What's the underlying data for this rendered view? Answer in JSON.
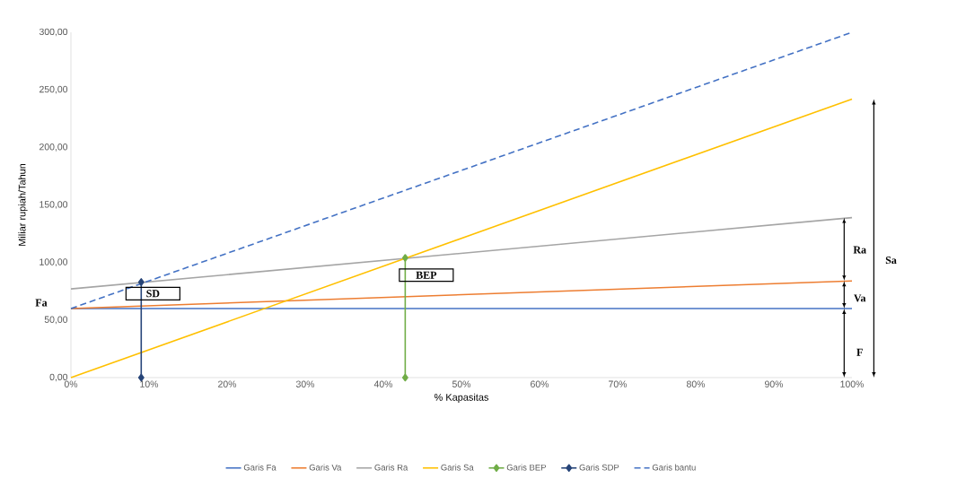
{
  "chart_data": {
    "type": "line",
    "xlabel": "% Kapasitas",
    "ylabel": "Miliar rupiah/Tahun",
    "xlim": [
      0,
      100
    ],
    "ylim": [
      0,
      300
    ],
    "xticks": [
      {
        "value": 0,
        "label": "0%"
      },
      {
        "value": 10,
        "label": "10%"
      },
      {
        "value": 20,
        "label": "20%"
      },
      {
        "value": 30,
        "label": "30%"
      },
      {
        "value": 40,
        "label": "40%"
      },
      {
        "value": 50,
        "label": "50%"
      },
      {
        "value": 60,
        "label": "60%"
      },
      {
        "value": 70,
        "label": "70%"
      },
      {
        "value": 80,
        "label": "80%"
      },
      {
        "value": 90,
        "label": "90%"
      },
      {
        "value": 100,
        "label": "100%"
      }
    ],
    "yticks": [
      {
        "value": 0,
        "label": "0,00"
      },
      {
        "value": 50,
        "label": "50,00"
      },
      {
        "value": 100,
        "label": "100,00"
      },
      {
        "value": 150,
        "label": "150,00"
      },
      {
        "value": 200,
        "label": "200,00"
      },
      {
        "value": 250,
        "label": "250,00"
      },
      {
        "value": 300,
        "label": "300,00"
      }
    ],
    "grid": false,
    "legend": "bottom",
    "series": [
      {
        "name": "Garis Fa",
        "color": "#4472c4",
        "x": [
          0,
          100
        ],
        "values": [
          60,
          60
        ],
        "marker": "none",
        "line_style": "solid"
      },
      {
        "name": "Garis Va",
        "color": "#ed7d31",
        "x": [
          0,
          100
        ],
        "values": [
          60,
          84
        ],
        "marker": "none",
        "line_style": "solid"
      },
      {
        "name": "Garis Ra",
        "color": "#a5a5a5",
        "x": [
          0,
          100
        ],
        "values": [
          77,
          139
        ],
        "marker": "none",
        "line_style": "solid"
      },
      {
        "name": "Garis Sa",
        "color": "#ffc000",
        "x": [
          0,
          100
        ],
        "values": [
          0,
          242
        ],
        "marker": "none",
        "line_style": "solid"
      },
      {
        "name": "Garis BEP",
        "color": "#70ad47",
        "x": [
          42.8,
          42.8
        ],
        "values": [
          0,
          104
        ],
        "marker": "diamond",
        "line_style": "solid"
      },
      {
        "name": "Garis SDP",
        "color": "#264478",
        "x": [
          9,
          9
        ],
        "values": [
          0,
          83
        ],
        "marker": "diamond",
        "line_style": "solid"
      },
      {
        "name": "Garis bantu",
        "color": "#4472c4",
        "x": [
          0,
          100
        ],
        "values": [
          60,
          300
        ],
        "marker": "none",
        "line_style": "dashed"
      }
    ],
    "annotations": [
      "Fa",
      "SD",
      "BEP",
      "Ra",
      "Va",
      "F",
      "Sa"
    ]
  }
}
